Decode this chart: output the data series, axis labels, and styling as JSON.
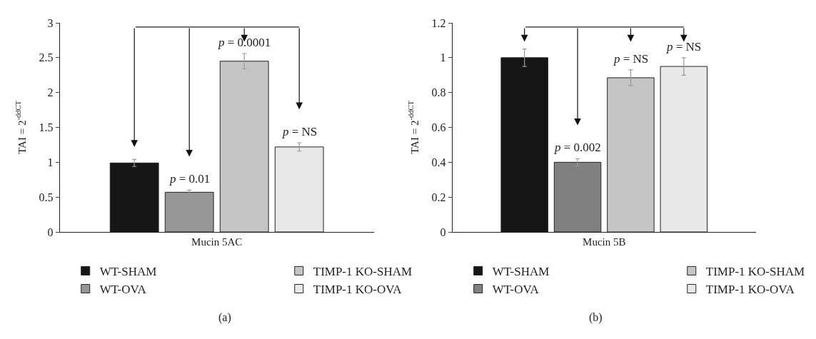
{
  "chart_data": [
    {
      "type": "bar",
      "title": "(a)",
      "ylabel": "TAI = 2$^{-ddCT}$",
      "categories": [
        "Mucin 5AC"
      ],
      "ylim": [
        0,
        3
      ],
      "yticks": [
        0,
        0.5,
        1,
        1.5,
        2,
        2.5,
        3
      ],
      "legend": "bottom",
      "series": [
        {
          "name": "WT-SHAM",
          "color": "#161616",
          "values": [
            0.99
          ],
          "errors": [
            0.05
          ]
        },
        {
          "name": "WT-OVA",
          "color": "#969696",
          "values": [
            0.57
          ],
          "errors": [
            0.03
          ]
        },
        {
          "name": "TIMP-1 KO-SHAM",
          "color": "#c4c5c4",
          "values": [
            2.45
          ],
          "errors": [
            0.11
          ]
        },
        {
          "name": "TIMP-1 KO-OVA",
          "color": "#e8e8e8",
          "values": [
            1.22
          ],
          "errors": [
            0.06
          ]
        }
      ],
      "annotations": [
        "p = 0.01",
        "p = 0.0001",
        "p = NS"
      ]
    },
    {
      "type": "bar",
      "title": "(b)",
      "ylabel": "TAI = 2$^{-ddCT}$",
      "categories": [
        "Mucin 5B"
      ],
      "ylim": [
        0,
        1.2
      ],
      "yticks": [
        0,
        0.2,
        0.4,
        0.6,
        0.8,
        1,
        1.2
      ],
      "legend": "bottom",
      "series": [
        {
          "name": "WT-SHAM",
          "color": "#161616",
          "values": [
            1.0
          ],
          "errors": [
            0.05
          ]
        },
        {
          "name": "WT-OVA",
          "color": "#808080",
          "values": [
            0.4
          ],
          "errors": [
            0.02
          ]
        },
        {
          "name": "TIMP-1 KO-SHAM",
          "color": "#c4c5c4",
          "values": [
            0.885
          ],
          "errors": [
            0.045
          ]
        },
        {
          "name": "TIMP-1 KO-OVA",
          "color": "#e8e8e8",
          "values": [
            0.95
          ],
          "errors": [
            0.05
          ]
        }
      ],
      "annotations": [
        "p = 0.002",
        "p = NS",
        "p = NS"
      ]
    }
  ]
}
